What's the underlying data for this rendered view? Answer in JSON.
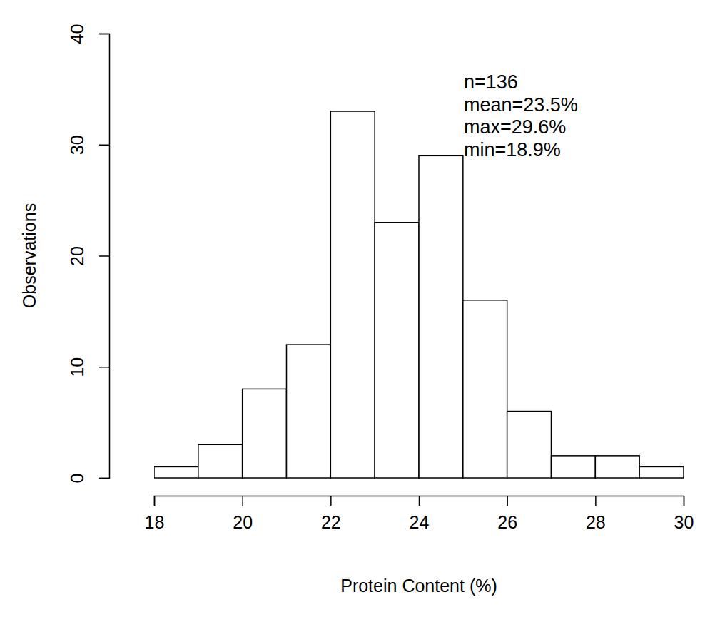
{
  "chart_data": {
    "type": "histogram",
    "x_label": "Protein Content (%)",
    "y_label": "Observations",
    "annotations": [
      "n=136",
      "mean=23.5%",
      "max=29.6%",
      "min=18.9%"
    ],
    "bins": [
      18,
      19,
      20,
      21,
      22,
      23,
      24,
      25,
      26,
      27,
      28,
      29,
      30
    ],
    "counts": [
      1,
      3,
      8,
      12,
      33,
      23,
      29,
      16,
      6,
      2,
      2,
      1
    ],
    "color": "#ffffff",
    "xlim": [
      18,
      30
    ],
    "xticks": [
      18,
      20,
      22,
      24,
      26,
      28,
      30
    ],
    "ylim": [
      0,
      40
    ],
    "yticks": [
      0,
      10,
      20,
      30,
      40
    ],
    "grid": false
  }
}
